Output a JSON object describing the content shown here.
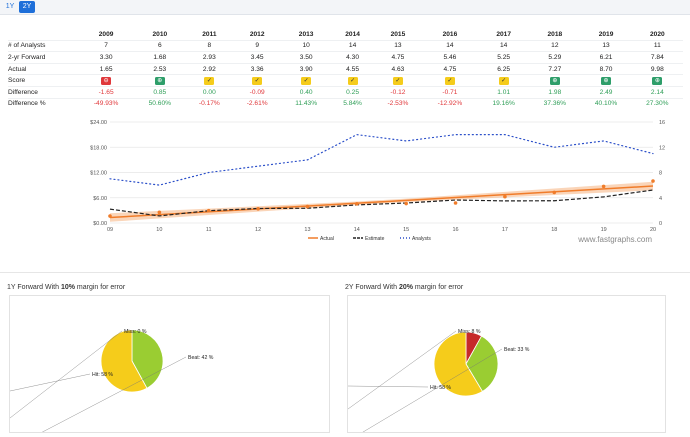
{
  "tabs": [
    "1Y",
    "2Y"
  ],
  "active_tab": "2Y",
  "table": {
    "years": [
      "2009",
      "2010",
      "2011",
      "2012",
      "2013",
      "2014",
      "2015",
      "2016",
      "2017",
      "2018",
      "2019",
      "2020"
    ],
    "rows": [
      {
        "label": "# of Analysts",
        "values": [
          "7",
          "6",
          "8",
          "9",
          "10",
          "14",
          "13",
          "14",
          "14",
          "12",
          "13",
          "11"
        ]
      },
      {
        "label": "2-yr Forward",
        "values": [
          "3.30",
          "1.68",
          "2.93",
          "3.45",
          "3.50",
          "4.30",
          "4.75",
          "5.46",
          "5.25",
          "5.29",
          "6.21",
          "7.84"
        ]
      },
      {
        "label": "Actual",
        "values": [
          "1.65",
          "2.53",
          "2.92",
          "3.36",
          "3.90",
          "4.55",
          "4.63",
          "4.75",
          "6.25",
          "7.27",
          "8.70",
          "9.98"
        ]
      }
    ],
    "score_label": "Score",
    "scores": [
      "miss",
      "beat",
      "hit",
      "hit",
      "hit",
      "hit",
      "hit",
      "hit",
      "hit",
      "beat",
      "beat",
      "beat"
    ],
    "difference_label": "Difference",
    "difference": [
      "-1.65",
      "0.85",
      "0.00",
      "-0.09",
      "0.40",
      "0.25",
      "-0.12",
      "-0.71",
      "1.01",
      "1.98",
      "2.49",
      "2.14"
    ],
    "difference_pct_label": "Difference %",
    "difference_pct": [
      "-49.93%",
      "50.60%",
      "-0.17%",
      "-2.61%",
      "11.43%",
      "5.84%",
      "-2.53%",
      "-12.92%",
      "19.16%",
      "37.36%",
      "40.10%",
      "27.30%"
    ]
  },
  "colors": {
    "beat": "#2e9e6a",
    "hit": "#f5cc1b",
    "miss": "#e0383b",
    "actual": "#f07c2a",
    "estimate": "#222222",
    "analysts": "#2b4fc9",
    "band": "#f6b27f"
  },
  "chart_data": [
    {
      "type": "line",
      "x": [
        "09",
        "10",
        "11",
        "12",
        "13",
        "14",
        "15",
        "16",
        "17",
        "18",
        "19",
        "20"
      ],
      "series": [
        {
          "name": "Actual",
          "axis": "left",
          "values": [
            1.65,
            2.53,
            2.92,
            3.36,
            3.9,
            4.55,
            4.63,
            4.75,
            6.25,
            7.27,
            8.7,
            9.98
          ]
        },
        {
          "name": "Estimate",
          "axis": "left",
          "values": [
            3.3,
            1.68,
            2.93,
            3.45,
            3.5,
            4.3,
            4.75,
            5.46,
            5.25,
            5.29,
            6.21,
            7.84
          ]
        },
        {
          "name": "Analysts",
          "axis": "right",
          "values": [
            7,
            6,
            8,
            9,
            10,
            14,
            13,
            14,
            14,
            12,
            13,
            11
          ]
        }
      ],
      "y_left_ticks": [
        "$0.00",
        "$6.00",
        "$12.00",
        "$18.00",
        "$24.00"
      ],
      "ylim_left": [
        0,
        24
      ],
      "y_right_ticks": [
        "0",
        "4",
        "8",
        "12",
        "16"
      ],
      "ylim_right": [
        0,
        16
      ],
      "watermark": "www.fastgraphs.com",
      "legend_placement": "bottom-center"
    },
    {
      "type": "pie",
      "title_parts": [
        "1Y Forward With ",
        "10%",
        " margin for error"
      ],
      "labels": [
        "Beat: 42 %",
        "Hit: 58 %",
        "Miss: 0 %"
      ],
      "values": [
        42,
        58,
        0
      ]
    },
    {
      "type": "pie",
      "title_parts": [
        "2Y Forward With ",
        "20%",
        " margin for error"
      ],
      "labels": [
        "Beat: 33 %",
        "Hit: 58 %",
        "Miss: 8 %"
      ],
      "values": [
        33,
        58,
        8
      ]
    }
  ]
}
